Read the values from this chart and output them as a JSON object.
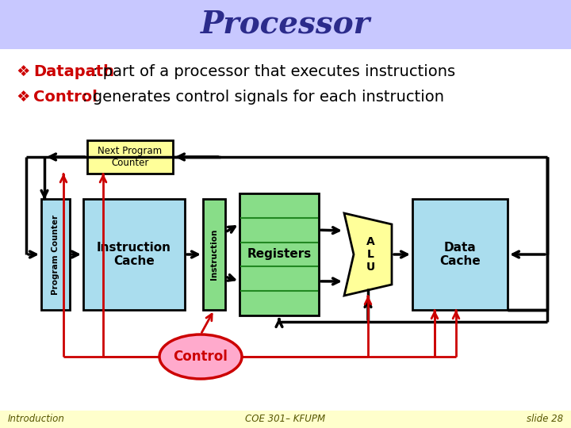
{
  "title": "Processor",
  "title_color": "#2B2B8B",
  "title_bg": "#C8C8FF",
  "bullet1_label": "Datapath",
  "bullet1_rest": ": part of a processor that executes instructions",
  "bullet2_label": "Control",
  "bullet2_rest": ": generates control signals for each instruction",
  "bullet_color": "#CC0000",
  "bullet_text_color": "#000000",
  "footer_left": "Introduction",
  "footer_center": "COE 301– KFUPM",
  "footer_right": "slide 28",
  "footer_bg": "#FFFFCC",
  "bg_color": "#FFFFFF",
  "box_cyan": "#AADDEE",
  "box_green": "#88DD88",
  "box_yellow": "#FFFF99",
  "box_pink": "#FFAACC",
  "arrow_black": "#000000",
  "arrow_red": "#CC0000"
}
